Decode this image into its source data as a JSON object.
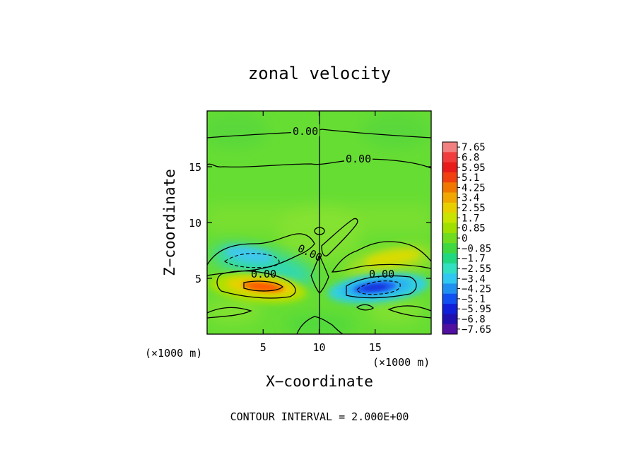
{
  "chart_data": {
    "type": "heatmap",
    "title": "zonal velocity",
    "xlabel": "X−coordinate",
    "ylabel": "Z−coordinate",
    "x_unit_label": "(×1000 m)",
    "y_unit_label": "(×1000 m)",
    "xlim": [
      0,
      20
    ],
    "ylim": [
      0,
      20
    ],
    "x_ticks": [
      5,
      10,
      15
    ],
    "y_ticks": [
      5,
      10,
      15
    ],
    "contour_interval_text": "CONTOUR INTERVAL = 2.000E+00",
    "contour_labels": [
      "0.00",
      "0.00",
      "0.00",
      "0.00",
      "0.00"
    ],
    "colorbar": {
      "labels": [
        "7.65",
        "6.8",
        "5.95",
        "5.1",
        "4.25",
        "3.4",
        "2.55",
        "1.7",
        "0.85",
        "0",
        "−0.85",
        "−1.7",
        "−2.55",
        "−3.4",
        "−4.25",
        "−5.1",
        "−5.95",
        "−6.8",
        "−7.65"
      ],
      "colors": [
        "#f28080",
        "#f03c3c",
        "#e81a1a",
        "#f04010",
        "#f07800",
        "#f0a800",
        "#e8d000",
        "#c8e400",
        "#a0e000",
        "#70dc20",
        "#40d840",
        "#20d880",
        "#30e0c0",
        "#30c8f0",
        "#2090f0",
        "#1050f0",
        "#1020d8",
        "#2010b0",
        "#5010a0"
      ]
    },
    "background_color": "#66dd33",
    "features": [
      {
        "name": "positive-jet-left",
        "x_center": 4.8,
        "z_center": 4.2,
        "peak": 4.6
      },
      {
        "name": "negative-jet-right",
        "x_center": 15.2,
        "z_center": 4.2,
        "peak": -4.6
      },
      {
        "name": "negative-band-left",
        "x_center": 3.8,
        "z_center": 6.2,
        "peak": -2.4
      },
      {
        "name": "positive-band-right",
        "x_center": 16.0,
        "z_center": 6.4,
        "peak": 2.2
      }
    ]
  }
}
